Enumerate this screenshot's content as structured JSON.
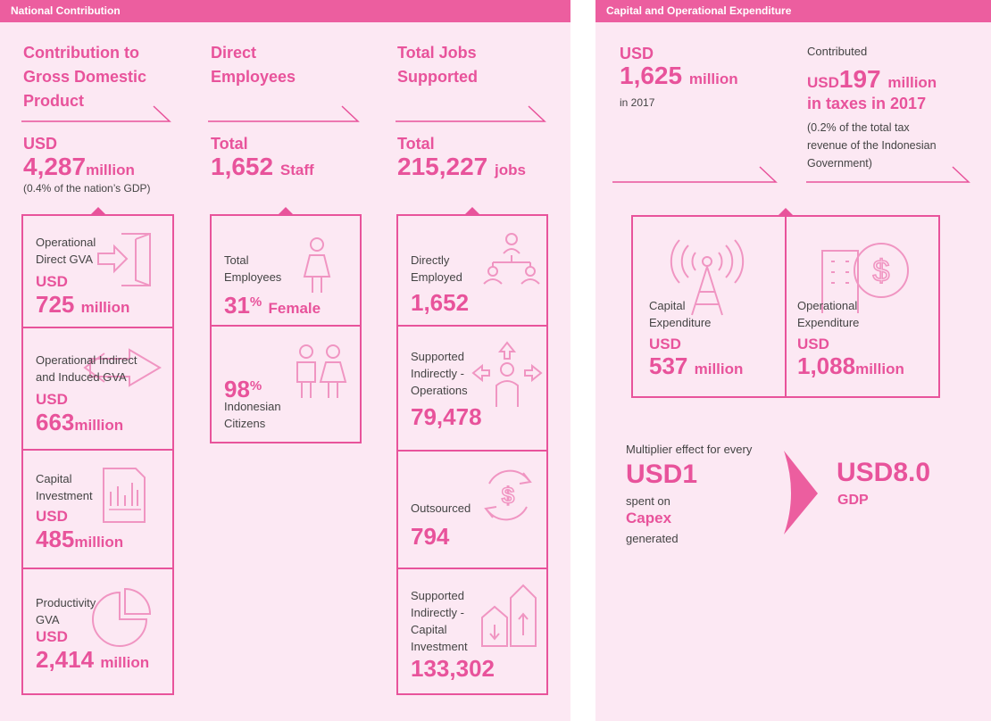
{
  "left": {
    "banner": "National Contribution",
    "gdp": {
      "title": [
        "Contribution to",
        "Gross Domestic",
        "Product"
      ],
      "unit": "USD",
      "value": "4,287",
      "value_unit": "million",
      "note": "(0.4% of the nation’s GDP)",
      "items": [
        {
          "label": [
            "Operational",
            "Direct GVA"
          ],
          "unit": "USD",
          "value": "725",
          "value_unit": "million",
          "icon": "exit-door-icon"
        },
        {
          "label": [
            "Operational Indirect",
            "and Induced GVA"
          ],
          "unit": "USD",
          "value": "663",
          "value_unit": "million",
          "icon": "double-arrow-icon"
        },
        {
          "label": [
            "Capital",
            "Investment"
          ],
          "unit": "USD",
          "value": "485",
          "value_unit": "million",
          "icon": "document-chart-icon"
        },
        {
          "label": [
            "Productivity",
            "GVA"
          ],
          "unit": "USD",
          "value": "2,414",
          "value_unit": "million",
          "icon": "pie-chart-icon"
        }
      ]
    },
    "employees": {
      "title": [
        "Direct",
        "Employees"
      ],
      "unit": "Total",
      "value": "1,652",
      "value_unit": "Staff",
      "items": [
        {
          "label": [
            "Total",
            "Employees"
          ],
          "value": "31",
          "sup": "%",
          "value_unit": "Female",
          "icon": "woman-icon"
        },
        {
          "value": "98",
          "sup": "%",
          "label": [
            "Indonesian",
            "Citizens"
          ],
          "icon": "people-icon"
        }
      ]
    },
    "jobs": {
      "title": [
        "Total Jobs",
        "Supported"
      ],
      "unit": "Total",
      "value": "215,227",
      "value_unit": "jobs",
      "items": [
        {
          "label": [
            "Directly",
            "Employed"
          ],
          "value": "1,652",
          "icon": "org-people-icon"
        },
        {
          "label": [
            "Supported",
            "Indirectly -",
            "Operations"
          ],
          "value": "79,478",
          "icon": "person-arrows-icon"
        },
        {
          "label": [
            "Outsourced"
          ],
          "value": "794",
          "icon": "dollar-cycle-icon"
        },
        {
          "label": [
            "Supported",
            "Indirectly -",
            "Capital",
            "Investment"
          ],
          "value": "133,302",
          "icon": "growth-bars-icon"
        }
      ]
    }
  },
  "right": {
    "banner": "Capital and Operational Expenditure",
    "total": {
      "unit": "USD",
      "value": "1,625",
      "value_unit": "million",
      "note": "in 2017"
    },
    "taxes": {
      "pre": "Contributed",
      "unit": "USD",
      "value": "197",
      "value_unit": "million",
      "line2": "in taxes in 2017",
      "note": [
        "(0.2% of the total tax",
        "revenue of the Indonesian",
        "Government)"
      ]
    },
    "capex": {
      "label": [
        "Capital",
        "Expenditure"
      ],
      "unit": "USD",
      "value": "537",
      "value_unit": "million",
      "icon": "tower-icon"
    },
    "opex": {
      "label": [
        "Operational",
        "Expenditure"
      ],
      "unit": "USD",
      "value": "1,088",
      "value_unit": "million",
      "icon": "building-dollar-icon"
    },
    "multiplier": {
      "text1": "Multiplier effect for every",
      "big": "USD1",
      "text2": "spent on",
      "capex": "Capex",
      "text3": "generated",
      "result": "USD8.0",
      "result_label": "GDP"
    }
  }
}
